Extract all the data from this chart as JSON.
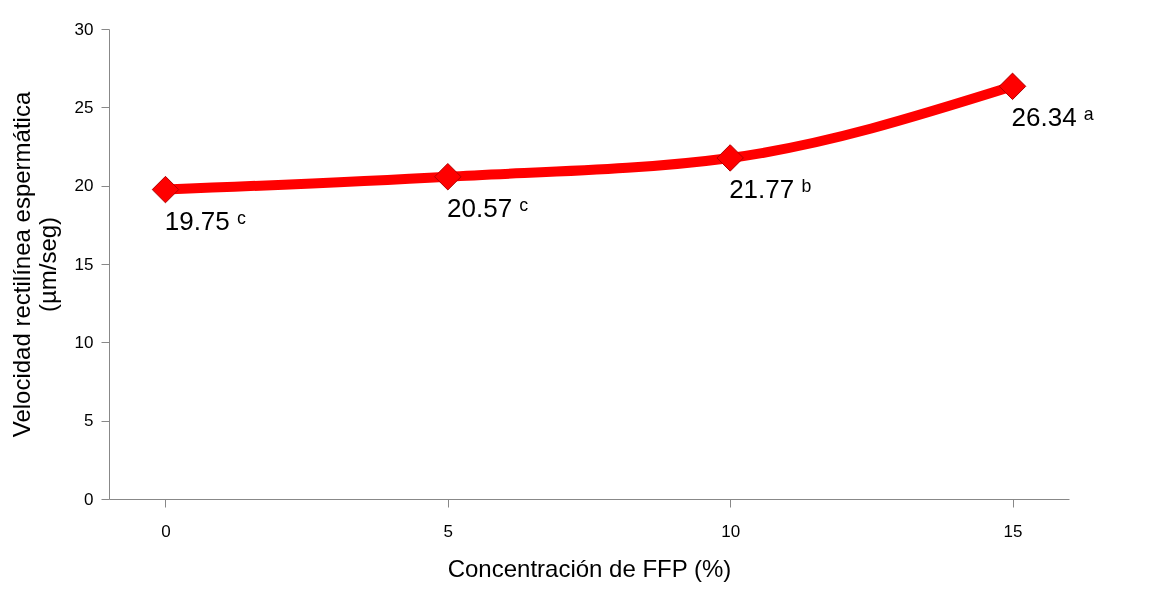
{
  "chart_data": {
    "type": "line",
    "xlabel": "Concentración de FFP (%)",
    "ylabel": "Velocidad rectilínea espermática\n(µm/seg)",
    "categories": [
      "0",
      "5",
      "10",
      "15"
    ],
    "series": [
      {
        "color": "#ff0000",
        "values": [
          19.75,
          20.57,
          21.77,
          26.34
        ],
        "value_labels": [
          "19.75 ᶜ",
          "20.57 ᶜ",
          "21.77 ᵇ",
          "26.34 ᵃ"
        ]
      }
    ],
    "ylim": [
      0,
      30
    ],
    "yticks": [
      0,
      5,
      10,
      15,
      20,
      25,
      30
    ],
    "marker": "diamond",
    "line_style": "solid",
    "grid": false
  }
}
